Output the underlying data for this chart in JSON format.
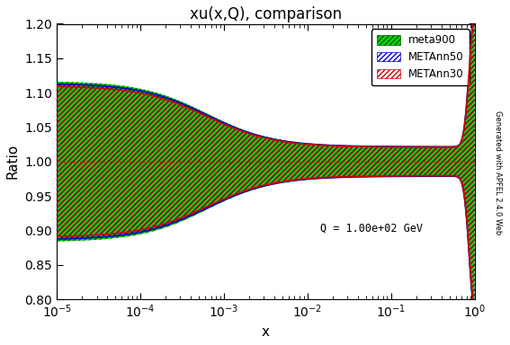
{
  "title": "xu(x,Q), comparison",
  "xlabel": "x",
  "ylabel": "Ratio",
  "annotation": "Q = 1.00e+02 GeV",
  "watermark": "Generated with APFEL 2.4.0 Web",
  "xmin": 1e-05,
  "xmax": 1.0,
  "ymin": 0.8,
  "ymax": 1.2,
  "yticks": [
    0.8,
    0.85,
    0.9,
    0.95,
    1.0,
    1.05,
    1.1,
    1.15,
    1.2
  ],
  "colors": {
    "meta900_fill": "#00dd00",
    "meta900_hatch": "#005500",
    "metaann50_line": "#0000cc",
    "metaann30_line": "#cc0000",
    "hline": "#cc0000"
  },
  "legend_labels": [
    "meta900",
    "METAnn50",
    "METAnn30"
  ],
  "background_color": "#ffffff"
}
